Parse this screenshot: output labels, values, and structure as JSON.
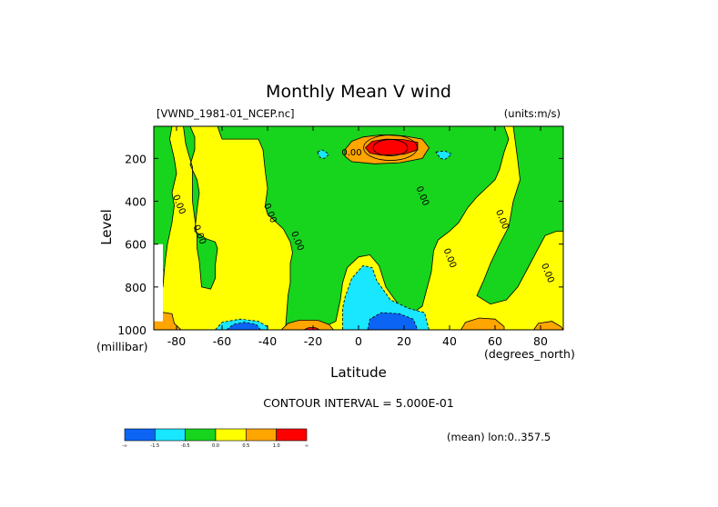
{
  "chart_data": {
    "type": "heatmap",
    "title": "Monthly Mean V wind",
    "file_label": "[VWND_1981-01_NCEP.nc]",
    "units_label": "(units:m/s)",
    "xlabel": "Latitude",
    "ylabel": "Level",
    "x_unit": "(degrees_north)",
    "y_unit": "(millibar)",
    "xlim": [
      -90,
      90
    ],
    "ylim": [
      1000,
      50
    ],
    "x_ticks": [
      -80,
      -60,
      -40,
      -20,
      0,
      20,
      40,
      60,
      80
    ],
    "y_ticks": [
      200,
      400,
      600,
      800,
      1000
    ],
    "contour_interval_text": "CONTOUR INTERVAL = 5.000E-01",
    "footer_text": "(mean) lon:0..357.5",
    "contour_labels": [
      "0.00",
      "0.00",
      "0.00",
      "0.00",
      "0.00",
      "0.00",
      "0.00",
      "0.00",
      "0.00",
      "1.00"
    ],
    "colorbar": {
      "colors": [
        "#0c64f5",
        "#19e6ff",
        "#17d41d",
        "#ffff00",
        "#ffa500",
        "#ff0000"
      ],
      "tick_labels": [
        "-∞",
        "-1.5",
        "-0.5",
        "0.0",
        "0.5",
        "1.0",
        "∞"
      ]
    },
    "regions": [
      {
        "level": "yellow",
        "color": "#ffff00",
        "poly": [
          [
            -92,
            1000
          ],
          [
            92,
            1000
          ],
          [
            92,
            50
          ],
          [
            -92,
            50
          ]
        ]
      },
      {
        "level": "green",
        "color": "#17d41d",
        "poly": [
          [
            -92,
            50
          ],
          [
            -92,
            800
          ],
          [
            -86,
            800
          ],
          [
            -85,
            680
          ],
          [
            -84,
            600
          ],
          [
            -82,
            500
          ],
          [
            -81,
            420
          ],
          [
            -82,
            360
          ],
          [
            -80,
            270
          ],
          [
            -81,
            200
          ],
          [
            -83,
            110
          ],
          [
            -82,
            50
          ]
        ]
      },
      {
        "level": "green",
        "color": "#17d41d",
        "poly": [
          [
            -77,
            50
          ],
          [
            -76,
            130
          ],
          [
            -75,
            170
          ],
          [
            -73,
            240
          ],
          [
            -73,
            320
          ],
          [
            -73,
            400
          ],
          [
            -72,
            480
          ],
          [
            -71,
            560
          ],
          [
            -71,
            620
          ],
          [
            -70,
            680
          ],
          [
            -69,
            800
          ],
          [
            -65,
            810
          ],
          [
            -63,
            760
          ],
          [
            -63,
            700
          ],
          [
            -62,
            620
          ],
          [
            -63,
            590
          ],
          [
            -67,
            575
          ],
          [
            -72,
            540
          ],
          [
            -71,
            440
          ],
          [
            -70,
            360
          ],
          [
            -71,
            300
          ],
          [
            -74,
            230
          ],
          [
            -72,
            160
          ],
          [
            -72,
            100
          ],
          [
            -74,
            50
          ]
        ]
      },
      {
        "level": "green",
        "color": "#17d41d",
        "poly": [
          [
            -62,
            50
          ],
          [
            -60,
            110
          ],
          [
            -44,
            110
          ],
          [
            -42,
            160
          ],
          [
            -41,
            260
          ],
          [
            -40,
            340
          ],
          [
            -41,
            420
          ],
          [
            -40,
            460
          ],
          [
            -37,
            490
          ],
          [
            -33,
            530
          ],
          [
            -30,
            590
          ],
          [
            -29,
            640
          ],
          [
            -30,
            690
          ],
          [
            -30,
            780
          ],
          [
            -31,
            840
          ],
          [
            -32,
            980
          ],
          [
            -23,
            990
          ],
          [
            -14,
            980
          ],
          [
            -10,
            960
          ],
          [
            -8,
            860
          ],
          [
            -7,
            780
          ],
          [
            -5,
            710
          ],
          [
            0,
            660
          ],
          [
            5,
            650
          ],
          [
            9,
            700
          ],
          [
            12,
            800
          ],
          [
            16,
            860
          ],
          [
            19,
            900
          ],
          [
            24,
            920
          ],
          [
            28,
            890
          ],
          [
            32,
            730
          ],
          [
            33,
            630
          ],
          [
            35,
            580
          ],
          [
            40,
            540
          ],
          [
            44,
            500
          ],
          [
            48,
            430
          ],
          [
            52,
            380
          ],
          [
            57,
            330
          ],
          [
            60,
            300
          ],
          [
            62,
            250
          ],
          [
            64,
            170
          ],
          [
            66,
            110
          ],
          [
            64,
            50
          ]
        ]
      },
      {
        "level": "green",
        "color": "#17d41d",
        "poly": [
          [
            68,
            50
          ],
          [
            69,
            130
          ],
          [
            70,
            210
          ],
          [
            71,
            300
          ],
          [
            68,
            400
          ],
          [
            66,
            520
          ],
          [
            62,
            600
          ],
          [
            58,
            690
          ],
          [
            55,
            770
          ],
          [
            52,
            840
          ],
          [
            58,
            880
          ],
          [
            65,
            860
          ],
          [
            70,
            800
          ],
          [
            74,
            720
          ],
          [
            78,
            640
          ],
          [
            82,
            560
          ],
          [
            87,
            540
          ],
          [
            92,
            540
          ],
          [
            92,
            50
          ]
        ]
      },
      {
        "level": "orange",
        "color": "#ffa500",
        "poly": [
          [
            -6,
            160
          ],
          [
            -3,
            120
          ],
          [
            2,
            100
          ],
          [
            10,
            90
          ],
          [
            20,
            95
          ],
          [
            28,
            110
          ],
          [
            31,
            150
          ],
          [
            28,
            200
          ],
          [
            18,
            220
          ],
          [
            7,
            225
          ],
          [
            -3,
            215
          ],
          [
            -6,
            190
          ]
        ]
      },
      {
        "level": "red",
        "color": "#ff0000",
        "poly": [
          [
            3,
            150
          ],
          [
            6,
            120
          ],
          [
            12,
            110
          ],
          [
            20,
            112
          ],
          [
            26,
            125
          ],
          [
            26,
            160
          ],
          [
            20,
            180
          ],
          [
            10,
            185
          ],
          [
            5,
            175
          ]
        ]
      },
      {
        "level": "cyan",
        "color": "#19e6ff",
        "poly": [
          [
            -7,
            1000
          ],
          [
            -7,
            900
          ],
          [
            -6,
            850
          ],
          [
            -3,
            760
          ],
          [
            2,
            700
          ],
          [
            6,
            710
          ],
          [
            8,
            770
          ],
          [
            14,
            860
          ],
          [
            22,
            900
          ],
          [
            29,
            920
          ],
          [
            31,
            1000
          ]
        ]
      },
      {
        "level": "blue",
        "color": "#0c64f5",
        "poly": [
          [
            4,
            1000
          ],
          [
            5,
            950
          ],
          [
            10,
            920
          ],
          [
            18,
            925
          ],
          [
            24,
            950
          ],
          [
            26,
            1000
          ]
        ]
      },
      {
        "level": "cyan",
        "color": "#19e6ff",
        "poly": [
          [
            -63,
            1000
          ],
          [
            -60,
            965
          ],
          [
            -52,
            950
          ],
          [
            -44,
            960
          ],
          [
            -40,
            985
          ],
          [
            -40,
            1000
          ]
        ]
      },
      {
        "level": "blue",
        "color": "#0c64f5",
        "poly": [
          [
            -58,
            1000
          ],
          [
            -55,
            975
          ],
          [
            -50,
            965
          ],
          [
            -45,
            975
          ],
          [
            -43,
            1000
          ]
        ]
      },
      {
        "level": "orange",
        "color": "#ffa500",
        "poly": [
          [
            -34,
            1000
          ],
          [
            -31,
            970
          ],
          [
            -26,
            955
          ],
          [
            -18,
            955
          ],
          [
            -13,
            975
          ],
          [
            -11,
            1000
          ]
        ]
      },
      {
        "level": "red",
        "color": "#ff0000",
        "poly": [
          [
            -24,
            1000
          ],
          [
            -22,
            990
          ],
          [
            -19,
            990
          ],
          [
            -17,
            1000
          ]
        ]
      },
      {
        "level": "orange",
        "color": "#ffa500",
        "poly": [
          [
            45,
            1000
          ],
          [
            47,
            965
          ],
          [
            53,
            945
          ],
          [
            60,
            950
          ],
          [
            64,
            985
          ],
          [
            64,
            1000
          ]
        ]
      },
      {
        "level": "orange",
        "color": "#ffa500",
        "poly": [
          [
            -92,
            1000
          ],
          [
            -92,
            930
          ],
          [
            -88,
            915
          ],
          [
            -82,
            925
          ],
          [
            -81,
            970
          ],
          [
            -78,
            1000
          ]
        ]
      },
      {
        "level": "orange",
        "color": "#ffa500",
        "poly": [
          [
            77,
            1000
          ],
          [
            79,
            970
          ],
          [
            85,
            960
          ],
          [
            89,
            985
          ],
          [
            90,
            1000
          ]
        ]
      },
      {
        "level": "cyan",
        "color": "#19e6ff",
        "poly": [
          [
            -92,
            700
          ],
          [
            -88,
            680
          ],
          [
            -86,
            720
          ],
          [
            -87,
            780
          ],
          [
            -92,
            780
          ]
        ]
      },
      {
        "level": "cyan",
        "color": "#19e6ff",
        "poly": [
          [
            -18,
            170
          ],
          [
            -16,
            160
          ],
          [
            -13,
            180
          ],
          [
            -15,
            200
          ],
          [
            -17,
            195
          ]
        ]
      },
      {
        "level": "cyan",
        "color": "#19e6ff",
        "poly": [
          [
            34,
            170
          ],
          [
            38,
            165
          ],
          [
            41,
            180
          ],
          [
            38,
            205
          ],
          [
            36,
            200
          ]
        ]
      },
      {
        "level": "white",
        "color": "#ffffff",
        "poly": [
          [
            -92,
            960
          ],
          [
            -92,
            600
          ],
          [
            -86,
            600
          ],
          [
            -86,
            960
          ]
        ]
      }
    ]
  }
}
